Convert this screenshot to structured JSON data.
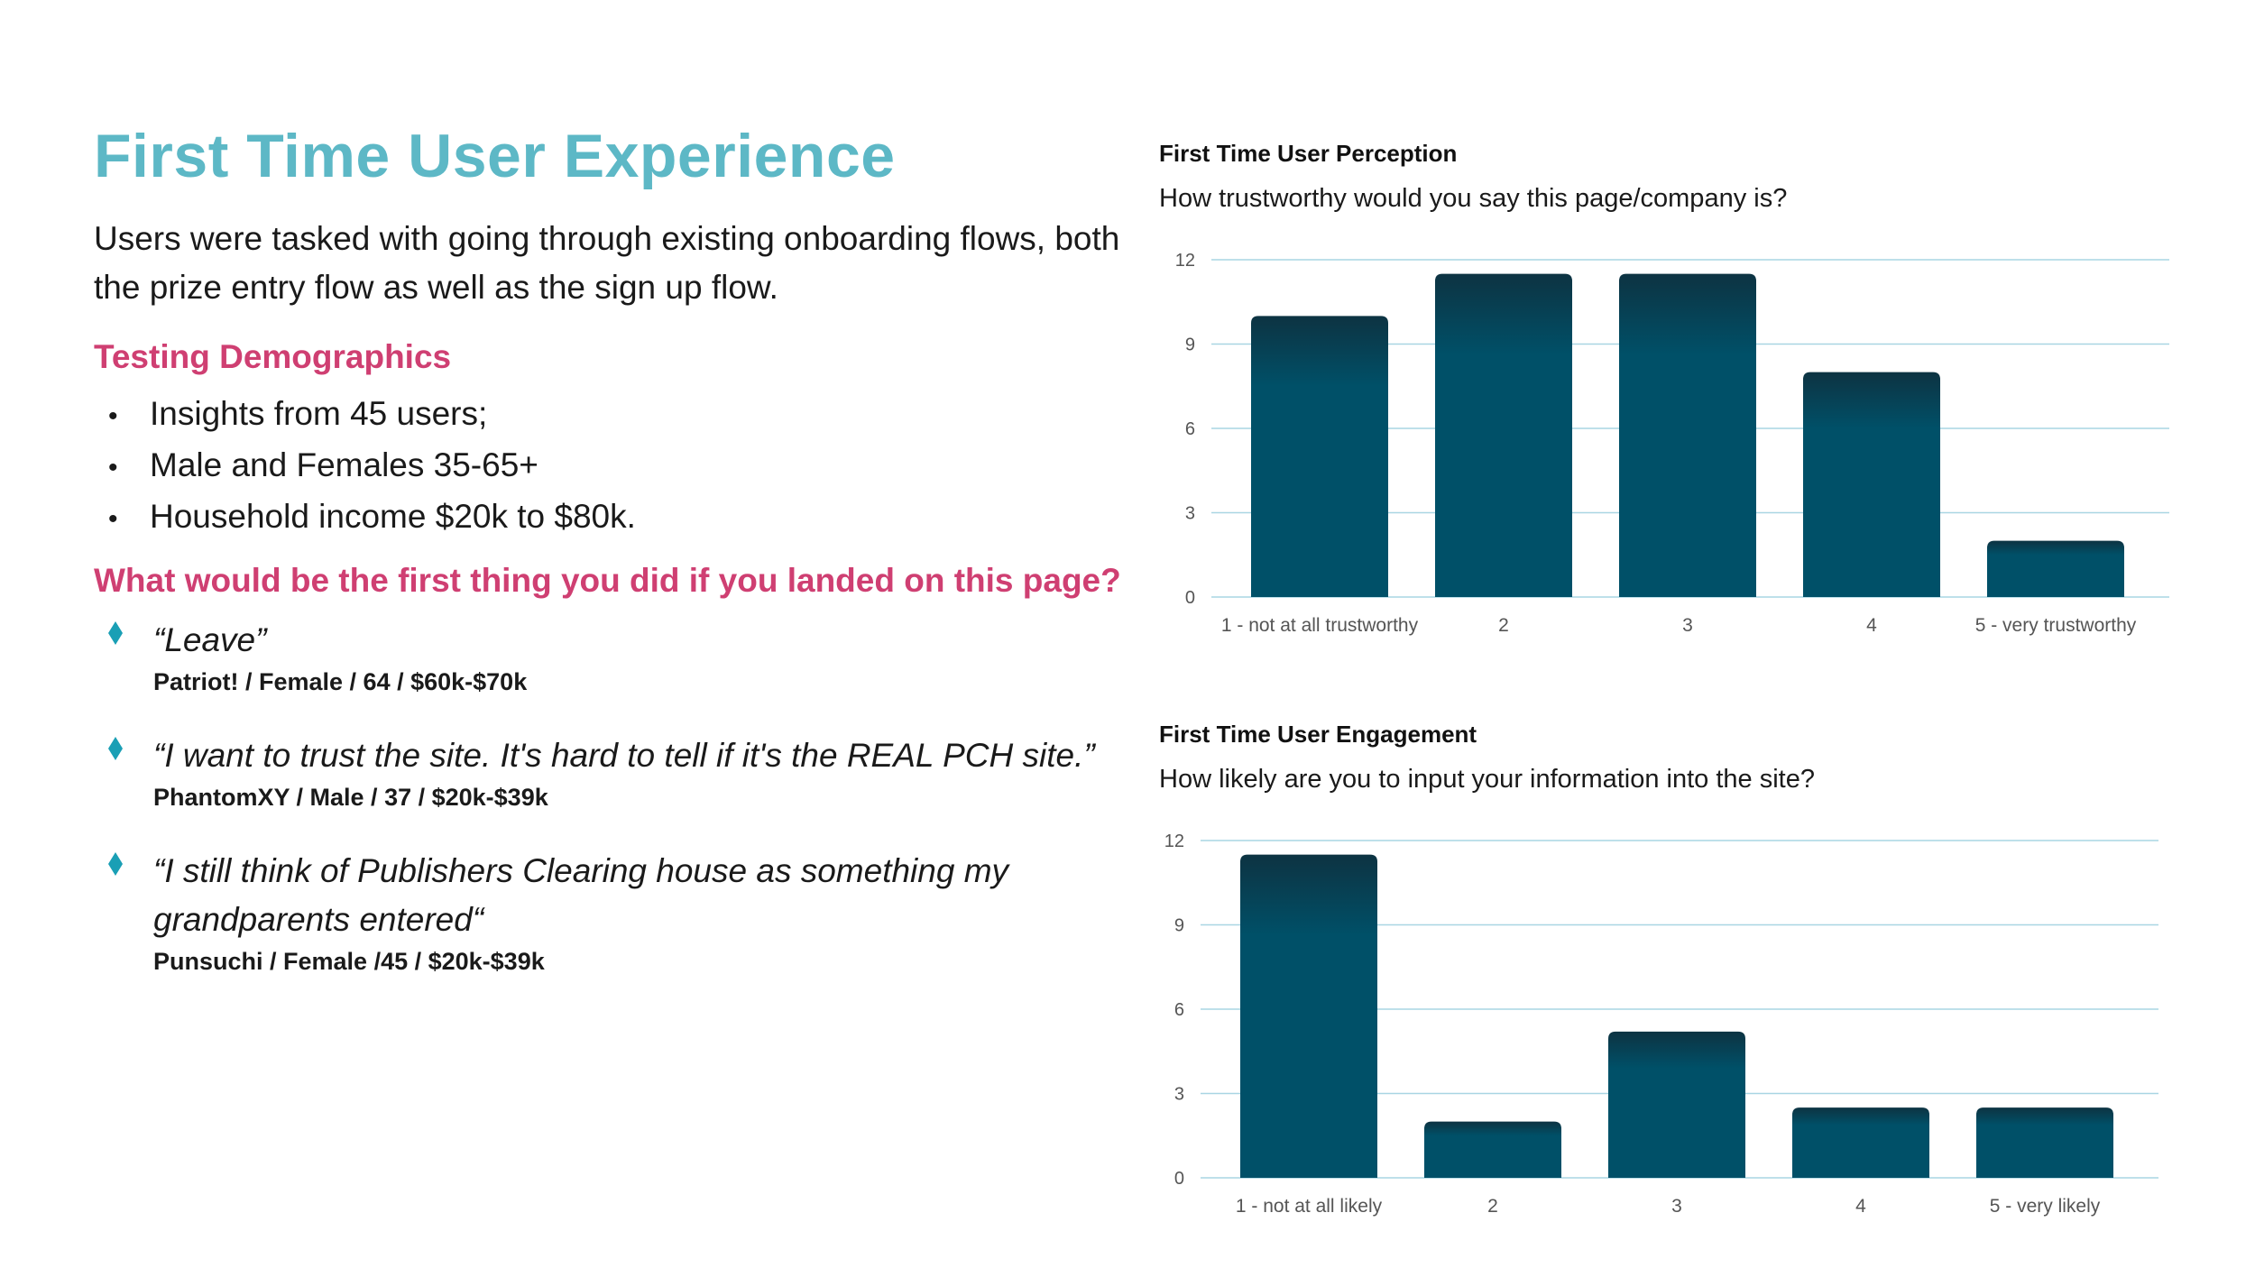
{
  "page": {
    "title": "First Time User Experience",
    "intro": "Users were tasked with going through existing onboarding flows, both the prize entry flow as well as the sign up flow.",
    "demographics_heading": "Testing Demographics",
    "demographics": [
      "Insights from 45 users;",
      "Male and Females 35-65+",
      "Household income $20k to $80k."
    ],
    "question_heading": "What would be the first thing you did if you landed on this page?",
    "quotes": [
      {
        "text": "“Leave”",
        "meta": "Patriot! / Female / 64 / $60k-$70k"
      },
      {
        "text": "“I want to trust the site. It's hard to tell if it's the REAL PCH site.”",
        "meta": "PhantomXY / Male / 37 / $20k-$39k"
      },
      {
        "text": "“I still think of Publishers Clearing house as something my grandparents entered“",
        "meta": "Punsuchi / Female /45 / $20k-$39k"
      }
    ]
  },
  "colors": {
    "title": "#5db8c6",
    "heading_accent": "#cf3f72",
    "bullet_diamond": "#1a9fb5",
    "bar_top": "#0d3342",
    "bar_bottom": "#005068",
    "gridline": "#a9d6e3",
    "axis_text": "#555555"
  },
  "chart_data": [
    {
      "type": "bar",
      "title": "First Time User Perception",
      "subtitle": "How trustworthy would you say this page/company is?",
      "categories": [
        "1 - not at all trustworthy",
        "2",
        "3",
        "4",
        "5 - very trustworthy"
      ],
      "values": [
        10,
        11.5,
        11.5,
        8,
        2
      ],
      "ylim": [
        0,
        12
      ],
      "yticks": [
        0,
        3,
        6,
        9,
        12
      ],
      "grid": true,
      "legend": "none"
    },
    {
      "type": "bar",
      "title": "First Time User Engagement",
      "subtitle": "How likely are you to input your information into the site?",
      "categories": [
        "1 - not at all likely",
        "2",
        "3",
        "4",
        "5 - very likely"
      ],
      "values": [
        11.5,
        2,
        5.2,
        2.5,
        2.5
      ],
      "ylim": [
        0,
        12
      ],
      "yticks": [
        0,
        3,
        6,
        9,
        12
      ],
      "grid": true,
      "legend": "none"
    }
  ]
}
